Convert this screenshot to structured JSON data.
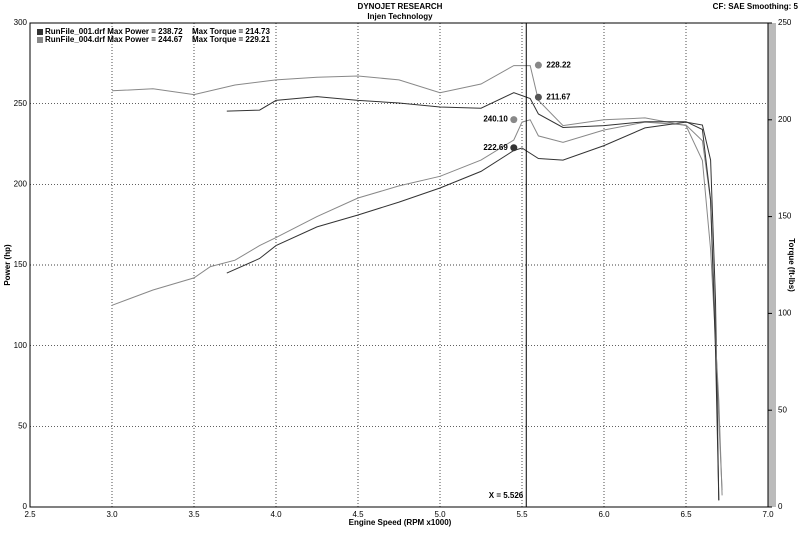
{
  "chart_data": {
    "type": "line",
    "title": "DYNOJET RESEARCH",
    "subtitle": "Injen Technology",
    "settings_text": "CF: SAE  Smoothing: 5",
    "xlabel": "Engine Speed (RPM x1000)",
    "ylabel": "Power (hp)",
    "y2label": "Torque (ft-lbs)",
    "xlim": [
      2.5,
      7.0
    ],
    "xticks": [
      2.5,
      {
        "value": 3,
        "label": "3.0"
      },
      3.5,
      {
        "value": 4,
        "label": "4.0"
      },
      4.5,
      {
        "value": 5,
        "label": "5.0"
      },
      5.5,
      {
        "value": 6,
        "label": "6.0"
      },
      6.5,
      {
        "value": 7,
        "label": "7.0"
      }
    ],
    "ylim": [
      0,
      300
    ],
    "yticks": [
      0,
      50,
      100,
      150,
      200,
      250,
      300
    ],
    "y2lim": [
      0,
      250
    ],
    "y2ticks": [
      0,
      50,
      100,
      150,
      200,
      250
    ],
    "grid": true,
    "legend": [
      {
        "color": "#333333",
        "power_text": "RunFile_001.drf Max Power = 238.72",
        "torque_text": "Max Torque = 214.73"
      },
      {
        "color": "#888888",
        "power_text": "RunFile_004.drf Max Power = 244.67",
        "torque_text": "Max Torque = 229.21"
      }
    ],
    "series": [
      {
        "color": "#888888",
        "axis": "y",
        "x": [
          3.0,
          3.25,
          3.5,
          3.6,
          3.75,
          3.9,
          4.0,
          4.25,
          4.5,
          4.75,
          5.0,
          5.25,
          5.45,
          5.5,
          5.55,
          5.6,
          5.75,
          6.0,
          6.25,
          6.5,
          6.6,
          6.65,
          6.7,
          6.72
        ],
        "values": [
          125,
          134.5,
          142,
          149,
          153,
          162,
          167,
          180,
          191.5,
          199,
          205,
          215,
          227.5,
          238.6,
          240,
          230,
          226,
          233.7,
          238.6,
          236.8,
          227,
          190,
          54,
          10.5
        ]
      },
      {
        "color": "#333333",
        "axis": "y",
        "x": [
          3.7,
          3.9,
          4.0,
          4.25,
          4.5,
          4.75,
          5.0,
          5.25,
          5.45,
          5.5,
          5.6,
          5.75,
          6.0,
          6.25,
          6.5,
          6.6,
          6.65,
          6.68,
          6.7
        ],
        "values": [
          145,
          154,
          162,
          173.6,
          181,
          189,
          197.7,
          208,
          221,
          222.5,
          216,
          215,
          224,
          235,
          238.6,
          236.8,
          215,
          128,
          4
        ]
      },
      {
        "color": "#888888",
        "axis": "y2",
        "x": [
          3.0,
          3.25,
          3.5,
          3.75,
          4.0,
          4.25,
          4.5,
          4.75,
          5.0,
          5.25,
          5.45,
          5.55,
          5.6,
          5.75,
          6.0,
          6.25,
          6.5,
          6.6,
          6.65,
          6.7,
          6.72
        ],
        "values": [
          215,
          216,
          213,
          218,
          220.6,
          222,
          222.6,
          220.6,
          214,
          218.5,
          228,
          228,
          210,
          197,
          200,
          201,
          197,
          179,
          133,
          55,
          6
        ]
      },
      {
        "color": "#333333",
        "axis": "y2",
        "x": [
          3.7,
          3.9,
          4.0,
          4.25,
          4.5,
          4.75,
          5.0,
          5.25,
          5.45,
          5.55,
          5.6,
          5.75,
          6.0,
          6.25,
          6.5,
          6.6,
          6.65,
          6.68,
          6.7
        ],
        "values": [
          204.5,
          205,
          210,
          212,
          210,
          208.7,
          206.6,
          206,
          214,
          211,
          203,
          196,
          197,
          199,
          199,
          195,
          158.6,
          81,
          3.6
        ]
      }
    ],
    "annotations": [
      {
        "x": 5.6,
        "value": 228.22,
        "label": "228.22",
        "axis": "y2",
        "color": "#888888",
        "side": "right"
      },
      {
        "x": 5.6,
        "value": 211.67,
        "label": "211.67",
        "axis": "y2",
        "color": "#555555",
        "side": "right"
      },
      {
        "x": 5.45,
        "value": 240.1,
        "label": "240.10",
        "axis": "y",
        "color": "#888888",
        "side": "left"
      },
      {
        "x": 5.45,
        "value": 222.69,
        "label": "222.69",
        "axis": "y",
        "color": "#333333",
        "side": "left"
      }
    ],
    "cursor": {
      "x": 5.526,
      "label": "X = 5.526"
    }
  }
}
